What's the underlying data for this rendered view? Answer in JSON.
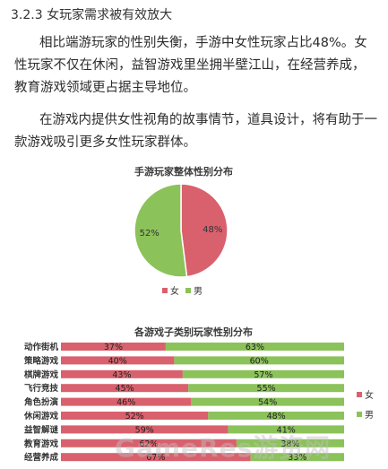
{
  "document": {
    "heading": "3.2.3 女玩家需求被有效放大",
    "para1": "相比端游玩家的性别失衡，手游中女性玩家占比48%。女性玩家不仅在休闲，益智游戏里坐拥半壁江山，在经营养成，教育游戏领域更占据主导地位。",
    "para2": "在游戏内提供女性视角的故事情节，道具设计，将有助于一款游戏吸引更多女性玩家群体。",
    "watermark": "GameRes游资网"
  },
  "colors": {
    "female": "#d9616d",
    "male": "#8cc25a"
  },
  "chart_data": [
    {
      "type": "pie",
      "title": "手游玩家整体性别分布",
      "slices": [
        {
          "name": "女",
          "value": 48,
          "label": "48%"
        },
        {
          "name": "男",
          "value": 52,
          "label": "52%"
        }
      ],
      "legend": [
        "女",
        "男"
      ],
      "legend_position": "bottom"
    },
    {
      "type": "bar",
      "stacked": true,
      "orientation": "horizontal",
      "title": "各游戏子类别玩家性别分布",
      "categories": [
        "动作街机",
        "策略游戏",
        "棋牌游戏",
        "飞行竞技",
        "角色扮演",
        "休闲游戏",
        "益智解谜",
        "教育游戏",
        "经营养成"
      ],
      "series": [
        {
          "name": "女",
          "values": [
            37,
            40,
            43,
            45,
            46,
            52,
            59,
            62,
            67
          ],
          "labels": [
            "37%",
            "40%",
            "43%",
            "45%",
            "46%",
            "52%",
            "59%",
            "62%",
            "67%"
          ]
        },
        {
          "name": "男",
          "values": [
            63,
            60,
            57,
            55,
            54,
            48,
            41,
            38,
            33
          ],
          "labels": [
            "63%",
            "60%",
            "57%",
            "55%",
            "54%",
            "48%",
            "41%",
            "38%",
            "33%"
          ]
        }
      ],
      "legend_position": "right",
      "xlim": [
        0,
        100
      ]
    }
  ]
}
